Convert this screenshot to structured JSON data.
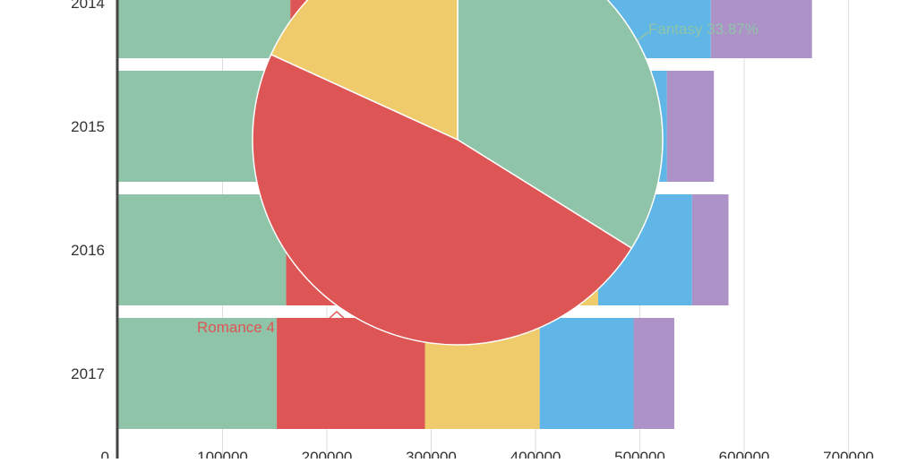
{
  "chart_data": [
    {
      "type": "bar",
      "orientation": "horizontal",
      "stacked": true,
      "categories": [
        "2014",
        "2015",
        "2016",
        "2017"
      ],
      "xlim": [
        0,
        700000
      ],
      "x_ticks": [
        "0",
        "100000",
        "200000",
        "300000",
        "400000",
        "500000",
        "600000",
        "700000"
      ],
      "grid": true,
      "series": [
        {
          "color": "#8fc4a8",
          "values": [
            165000,
            160000,
            161000,
            152000
          ]
        },
        {
          "color": "#dd5555",
          "values": [
            150000,
            145000,
            185000,
            142000
          ]
        },
        {
          "color": "#efcb6b",
          "values": [
            120000,
            110000,
            114000,
            110000
          ]
        },
        {
          "color": "#60b6e6",
          "values": [
            133000,
            111000,
            90000,
            90000
          ]
        },
        {
          "color": "#ad92c8",
          "values": [
            97000,
            45000,
            35000,
            39000
          ]
        }
      ]
    },
    {
      "type": "pie",
      "slices": [
        {
          "label": "Fantasy 33.87%",
          "value": 33.87,
          "color": "#8fc4a8"
        },
        {
          "label": "Romance 4",
          "value": 47.95,
          "color": "#dd5555"
        },
        {
          "value": 18.18,
          "color": "#efcb6b"
        }
      ]
    }
  ]
}
